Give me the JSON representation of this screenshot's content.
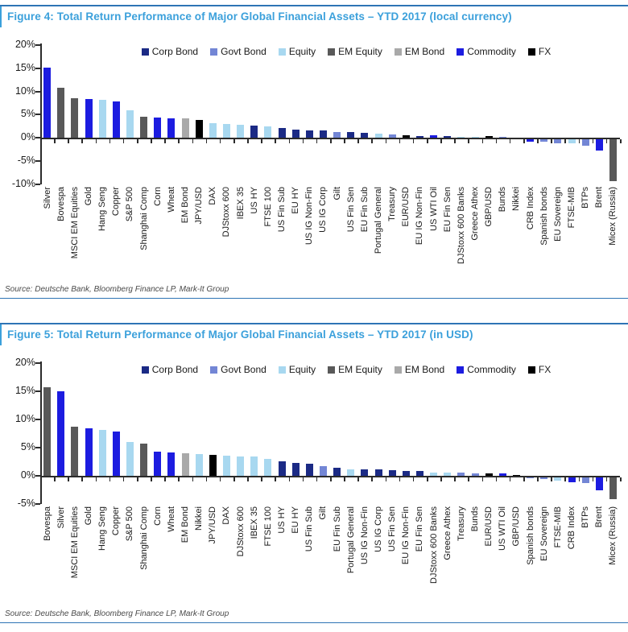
{
  "colors": {
    "title_accent": "#3BA0DB",
    "rule_accent": "#2E74B5",
    "axis": "#2b2b2b"
  },
  "palette": {
    "Corp Bond": "#1B2A85",
    "Govt Bond": "#7386D5",
    "Equity": "#A8D8F0",
    "EM Equity": "#595959",
    "EM Bond": "#A9A9A9",
    "Commodity": "#1C1CE0",
    "FX": "#000000"
  },
  "chart_data": [
    {
      "type": "bar",
      "title": "Figure 4: Total Return Performance of Major Global Financial Assets – YTD 2017 (local currency)",
      "source": "Source: Deutsche Bank, Bloomberg Finance LP, Mark-It Group",
      "legend": [
        "Corp Bond",
        "Govt Bond",
        "Equity",
        "EM Equity",
        "EM Bond",
        "Commodity",
        "FX"
      ],
      "legend_position": "top-inside",
      "grid": false,
      "ylim": [
        -10,
        20
      ],
      "yticks": [
        20,
        15,
        10,
        5,
        0,
        -5,
        -10
      ],
      "ytick_suffix": "%",
      "categories": [
        "Silver",
        "Bovespa",
        "MSCI EM Equities",
        "Gold",
        "Hang Seng",
        "Copper",
        "S&P 500",
        "Shanghai Comp",
        "Corn",
        "Wheat",
        "EM Bond",
        "JPY/USD",
        "DAX",
        "DJStoxx 600",
        "IBEX 35",
        "US HY",
        "FTSE 100",
        "US Fin Sub",
        "EU HY",
        "US IG Non-Fin",
        "US IG Corp",
        "Gilt",
        "US Fin Sen",
        "EU Fin Sub",
        "Portugal General",
        "Treasury",
        "EUR/USD",
        "EU IG Non-Fin",
        "US WTI Oil",
        "EU Fin Sen",
        "DJStoxx 600 Banks",
        "Greece Athex",
        "GBP/USD",
        "Bunds",
        "Nikkei",
        "CRB Index",
        "Spanish bonds",
        "EU Sovereign",
        "FTSE-MIB",
        "BTPs",
        "Brent",
        "Micex (Russia)"
      ],
      "bar_classes": [
        "Commodity",
        "EM Equity",
        "EM Equity",
        "Commodity",
        "Equity",
        "Commodity",
        "Equity",
        "EM Equity",
        "Commodity",
        "Commodity",
        "EM Bond",
        "FX",
        "Equity",
        "Equity",
        "Equity",
        "Corp Bond",
        "Equity",
        "Corp Bond",
        "Corp Bond",
        "Corp Bond",
        "Corp Bond",
        "Govt Bond",
        "Corp Bond",
        "Corp Bond",
        "Equity",
        "Govt Bond",
        "FX",
        "Corp Bond",
        "Commodity",
        "Corp Bond",
        "Equity",
        "Equity",
        "FX",
        "Govt Bond",
        "Equity",
        "Commodity",
        "Govt Bond",
        "Govt Bond",
        "Equity",
        "Govt Bond",
        "Commodity",
        "EM Equity"
      ],
      "values": [
        15.1,
        10.7,
        8.6,
        8.3,
        8.2,
        7.9,
        6.0,
        4.5,
        4.3,
        4.2,
        4.1,
        3.8,
        3.2,
        2.9,
        2.8,
        2.6,
        2.5,
        2.1,
        1.8,
        1.6,
        1.5,
        1.3,
        1.2,
        1.0,
        0.8,
        0.7,
        0.5,
        0.4,
        0.5,
        0.4,
        0.2,
        0.1,
        0.3,
        0.1,
        0.0,
        -0.6,
        -0.6,
        -0.8,
        -0.9,
        -1.4,
        -2.4,
        -9.0
      ]
    },
    {
      "type": "bar",
      "title": "Figure 5: Total Return Performance of Major Global Financial Assets – YTD 2017 (in USD)",
      "source": "Source: Deutsche Bank, Bloomberg Finance LP, Mark-It Group",
      "legend": [
        "Corp Bond",
        "Govt Bond",
        "Equity",
        "EM Equity",
        "EM Bond",
        "Commodity",
        "FX"
      ],
      "legend_position": "top-inside",
      "grid": false,
      "ylim": [
        -5,
        20
      ],
      "yticks": [
        20,
        15,
        10,
        5,
        0,
        -5
      ],
      "ytick_suffix": "%",
      "categories": [
        "Bovespa",
        "Silver",
        "MSCI EM Equities",
        "Gold",
        "Hang Seng",
        "Copper",
        "S&P 500",
        "Shanghai Comp",
        "Corn",
        "Wheat",
        "EM Bond",
        "Nikkei",
        "JPY/USD",
        "DAX",
        "DJStoxx 600",
        "IBEX 35",
        "FTSE 100",
        "US HY",
        "EU HY",
        "US Fin Sub",
        "Gilt",
        "EU Fin Sub",
        "Portugal General",
        "US IG Non-Fin",
        "US IG Corp",
        "US Fin Sen",
        "EU IG Non-Fin",
        "EU Fin Sen",
        "DJStoxx 600 Banks",
        "Greece Athex",
        "Treasury",
        "Bunds",
        "EUR/USD",
        "US WTI Oil",
        "GBP/USD",
        "Spanish bonds",
        "EU Sovereign",
        "FTSE-MIB",
        "CRB Index",
        "BTPs",
        "Brent",
        "Micex (Russia)"
      ],
      "bar_classes": [
        "EM Equity",
        "Commodity",
        "EM Equity",
        "Commodity",
        "Equity",
        "Commodity",
        "Equity",
        "EM Equity",
        "Commodity",
        "Commodity",
        "EM Bond",
        "Equity",
        "FX",
        "Equity",
        "Equity",
        "Equity",
        "Equity",
        "Corp Bond",
        "Corp Bond",
        "Corp Bond",
        "Govt Bond",
        "Corp Bond",
        "Equity",
        "Corp Bond",
        "Corp Bond",
        "Corp Bond",
        "Corp Bond",
        "Corp Bond",
        "Equity",
        "Equity",
        "Govt Bond",
        "Govt Bond",
        "FX",
        "Commodity",
        "FX",
        "Govt Bond",
        "Govt Bond",
        "Equity",
        "Commodity",
        "Govt Bond",
        "Commodity",
        "EM Equity"
      ],
      "values": [
        15.7,
        15.0,
        8.7,
        8.4,
        8.2,
        7.9,
        6.0,
        5.7,
        4.3,
        4.1,
        4.0,
        3.8,
        3.7,
        3.6,
        3.5,
        3.4,
        3.0,
        2.6,
        2.3,
        2.1,
        1.7,
        1.5,
        1.2,
        1.2,
        1.1,
        1.0,
        0.9,
        0.9,
        0.6,
        0.6,
        0.6,
        0.5,
        0.4,
        0.4,
        0.2,
        -0.2,
        -0.3,
        -0.5,
        -0.8,
        -1.0,
        -2.3,
        -3.8
      ]
    }
  ]
}
